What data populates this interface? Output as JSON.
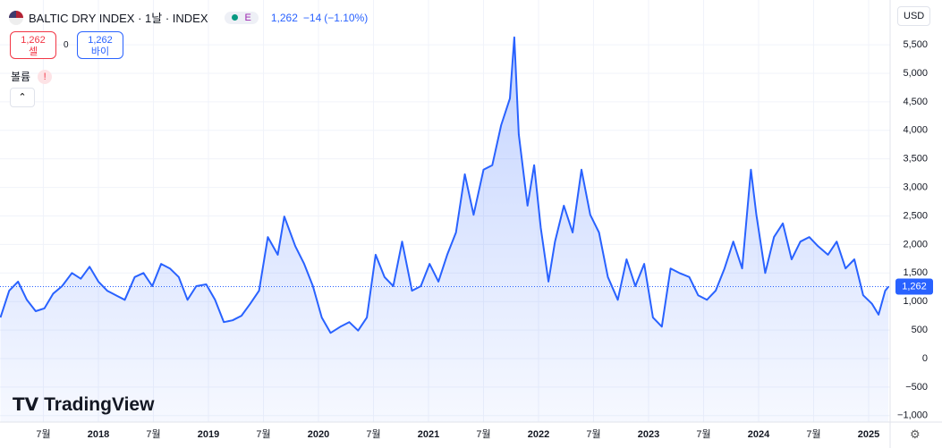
{
  "header": {
    "symbol": "BALTIC DRY INDEX · 1날 · INDEX",
    "badge": "E",
    "price": "1,262",
    "change": "−14",
    "change_pct": "(−1.10%)",
    "sell_price": "1,262",
    "sell_label": "셀",
    "spread": "0",
    "buy_price": "1,262",
    "buy_label": "바이",
    "volume_label": "볼륨",
    "warning": "!",
    "currency": "USD",
    "brand": "TradingView"
  },
  "chart_data": {
    "type": "line",
    "color": "#2962ff",
    "area": true,
    "grid": true,
    "x": [
      2017.11,
      2017.19,
      2017.27,
      2017.35,
      2017.43,
      2017.51,
      2017.59,
      2017.67,
      2017.76,
      2017.84,
      2017.92,
      2018.0,
      2018.08,
      2018.16,
      2018.24,
      2018.33,
      2018.41,
      2018.49,
      2018.57,
      2018.65,
      2018.73,
      2018.81,
      2018.89,
      2018.98,
      2019.06,
      2019.14,
      2019.22,
      2019.3,
      2019.38,
      2019.46,
      2019.54,
      2019.63,
      2019.69,
      2019.79,
      2019.87,
      2019.95,
      2020.03,
      2020.11,
      2020.2,
      2020.28,
      2020.36,
      2020.44,
      2020.52,
      2020.6,
      2020.68,
      2020.76,
      2020.85,
      2020.93,
      2021.01,
      2021.09,
      2021.17,
      2021.25,
      2021.33,
      2021.41,
      2021.5,
      2021.58,
      2021.66,
      2021.74,
      2021.78,
      2021.82,
      2021.9,
      2021.96,
      2022.02,
      2022.09,
      2022.15,
      2022.23,
      2022.31,
      2022.39,
      2022.47,
      2022.55,
      2022.63,
      2022.72,
      2022.8,
      2022.88,
      2022.96,
      2023.04,
      2023.12,
      2023.2,
      2023.28,
      2023.37,
      2023.45,
      2023.53,
      2023.61,
      2023.69,
      2023.77,
      2023.85,
      2023.93,
      2023.98,
      2024.06,
      2024.14,
      2024.22,
      2024.3,
      2024.38,
      2024.46,
      2024.54,
      2024.63,
      2024.71,
      2024.79,
      2024.87,
      2024.95,
      2025.03,
      2025.09,
      2025.15,
      2025.18
    ],
    "values": [
      720,
      1190,
      1350,
      1030,
      830,
      880,
      1140,
      1270,
      1500,
      1400,
      1610,
      1350,
      1190,
      1110,
      1030,
      1430,
      1500,
      1270,
      1660,
      1580,
      1430,
      1030,
      1270,
      1300,
      1030,
      640,
      670,
      750,
      960,
      1190,
      2130,
      1820,
      2490,
      1970,
      1660,
      1270,
      720,
      450,
      560,
      640,
      490,
      720,
      1820,
      1430,
      1270,
      2050,
      1190,
      1270,
      1660,
      1350,
      1820,
      2210,
      3230,
      2520,
      3310,
      3390,
      4090,
      4560,
      5630,
      3930,
      2680,
      3390,
      2290,
      1350,
      2050,
      2680,
      2210,
      3310,
      2520,
      2210,
      1430,
      1030,
      1740,
      1270,
      1660,
      720,
      560,
      1580,
      1500,
      1430,
      1110,
      1030,
      1190,
      1580,
      2050,
      1580,
      3310,
      2520,
      1500,
      2130,
      2370,
      1740,
      2050,
      2130,
      1970,
      1820,
      2050,
      1580,
      1740,
      1110,
      960,
      770,
      1190,
      1262
    ],
    "last_value": {
      "value": 1262,
      "label": "1,262"
    },
    "xlim": [
      2017.106,
      2025.195
    ],
    "xticks": [
      {
        "value": 2017.5,
        "label": "7월"
      },
      2018,
      {
        "value": 2018.5,
        "label": "7월"
      },
      2019,
      {
        "value": 2019.5,
        "label": "7월"
      },
      2020,
      {
        "value": 2020.5,
        "label": "7월"
      },
      2021,
      {
        "value": 2021.5,
        "label": "7월"
      },
      2022,
      {
        "value": 2022.5,
        "label": "7월"
      },
      2023,
      {
        "value": 2023.5,
        "label": "7월"
      },
      2024,
      {
        "value": 2024.5,
        "label": "7월"
      },
      2025
    ],
    "ylim": [
      -1113,
      6285
    ],
    "yticks": [
      {
        "value": -1000,
        "label": "−1,000"
      },
      {
        "value": -500,
        "label": "−500"
      },
      0,
      500,
      {
        "value": 1000,
        "label": "1,000"
      },
      {
        "value": 1500,
        "label": "1,500"
      },
      {
        "value": 2000,
        "label": "2,000"
      },
      {
        "value": 2500,
        "label": "2,500"
      },
      {
        "value": 3000,
        "label": "3,000"
      },
      {
        "value": 3500,
        "label": "3,500"
      },
      {
        "value": 4000,
        "label": "4,000"
      },
      {
        "value": 4500,
        "label": "4,500"
      },
      {
        "value": 5000,
        "label": "5,000"
      },
      {
        "value": 5500,
        "label": "5,500"
      }
    ]
  }
}
